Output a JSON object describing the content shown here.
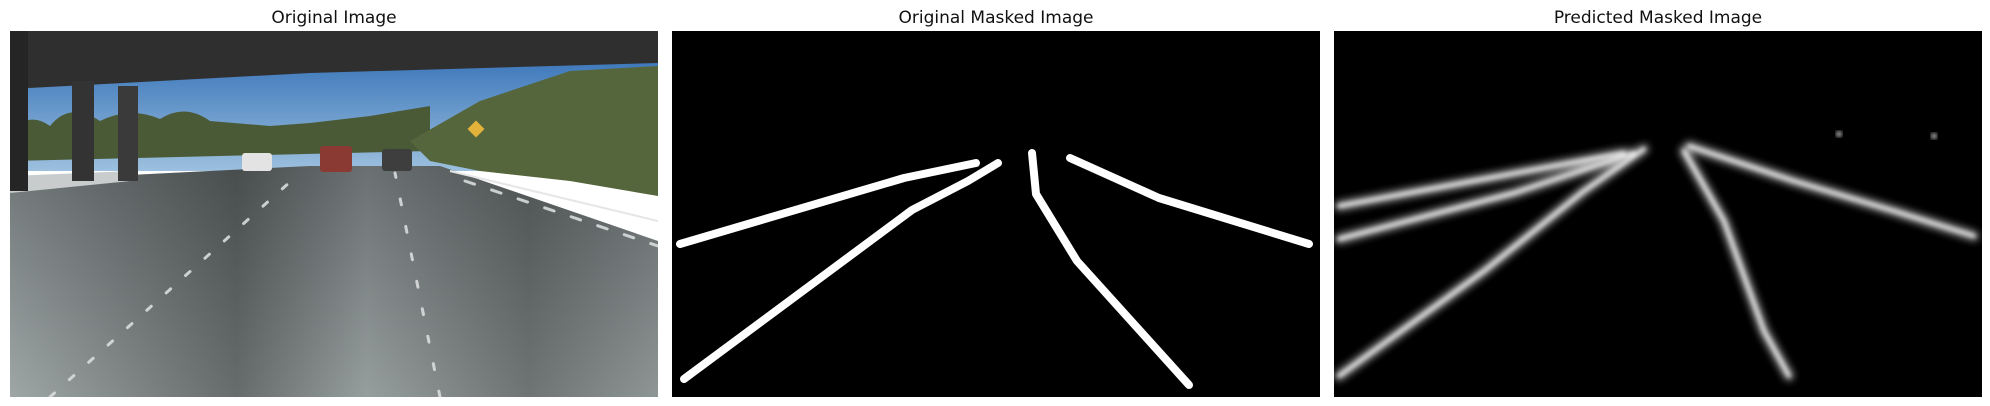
{
  "panels": {
    "original": {
      "title": "Original Image"
    },
    "original_mask": {
      "title": "Original Masked Image"
    },
    "predicted_mask": {
      "title": "Predicted Masked Image"
    }
  },
  "colors": {
    "mask_background": "#000000",
    "lane_line": "#ffffff",
    "sky": "#4f86c2",
    "road": "#8d9495",
    "overpass": "#2b2b2b",
    "vegetation": "#50603a"
  }
}
